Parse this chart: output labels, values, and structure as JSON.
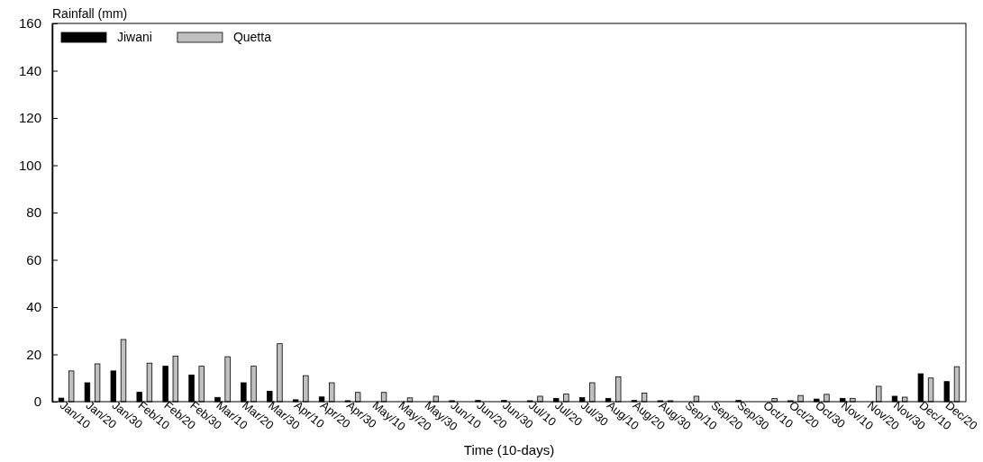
{
  "chart_data": {
    "type": "bar",
    "ylabel": "Rainfall (mm)",
    "xlabel": "Time (10-days)",
    "categories": [
      "Jan/10",
      "Jan/20",
      "Jan/30",
      "Feb/10",
      "Feb/20",
      "Feb/30",
      "Mar/10",
      "Mar/20",
      "Mar/30",
      "Apr/10",
      "Apr/20",
      "Apr/30",
      "May/10",
      "May/20",
      "May/30",
      "Jun/10",
      "Jun/20",
      "Jun/30",
      "Jul/10",
      "Jul/20",
      "Jul/30",
      "Aug/10",
      "Aug/20",
      "Aug/30",
      "Sep/10",
      "Sep/20",
      "Sep/30",
      "Oct/10",
      "Oct/20",
      "Oct/30",
      "Nov/10",
      "Nov/20",
      "Nov/30",
      "Dec/10",
      "Dec/20"
    ],
    "series": [
      {
        "name": "Jiwani",
        "color": "#000000",
        "values": [
          1.5,
          8,
          13,
          4,
          15,
          11.3,
          1.8,
          8,
          4.4,
          0.8,
          2,
          0.4,
          0,
          0,
          0,
          0.4,
          0.5,
          0.5,
          0.4,
          1.4,
          1.7,
          1.4,
          0.5,
          0.4,
          0,
          0,
          0.5,
          0,
          0.4,
          1.1,
          1.4,
          0,
          2.3,
          11.8,
          8.5
        ]
      },
      {
        "name": "Quetta",
        "color": "#c0c0c0",
        "values": [
          13,
          16,
          26.3,
          16.3,
          19.3,
          15,
          19,
          15,
          24.5,
          11,
          8,
          3.9,
          3.9,
          1.6,
          2.3,
          0,
          0,
          0,
          2.3,
          3.2,
          8,
          10.5,
          3.6,
          0.4,
          2.3,
          0,
          0,
          1.3,
          2.6,
          3.1,
          1.4,
          6.5,
          1.9,
          10,
          14.8
        ]
      }
    ],
    "ylim": [
      0,
      160
    ],
    "yticks": [
      0,
      20,
      40,
      60,
      80,
      100,
      120,
      140,
      160
    ],
    "grid": false,
    "legend": "top left"
  }
}
